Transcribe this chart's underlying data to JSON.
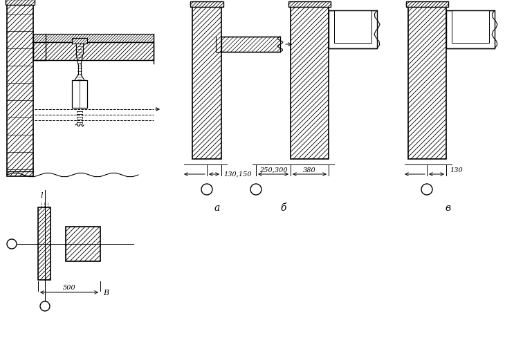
{
  "bg_color": "#ffffff",
  "line_color": "#000000",
  "labels": {
    "a": "а",
    "b": "б",
    "v": "в",
    "B": "B",
    "l": "l",
    "dim_a": "130,150",
    "dim_b1": "250,300",
    "dim_b2": "380",
    "dim_v": "130",
    "dim_500": "500"
  },
  "figsize": [
    7.56,
    5.06
  ],
  "dpi": 100
}
